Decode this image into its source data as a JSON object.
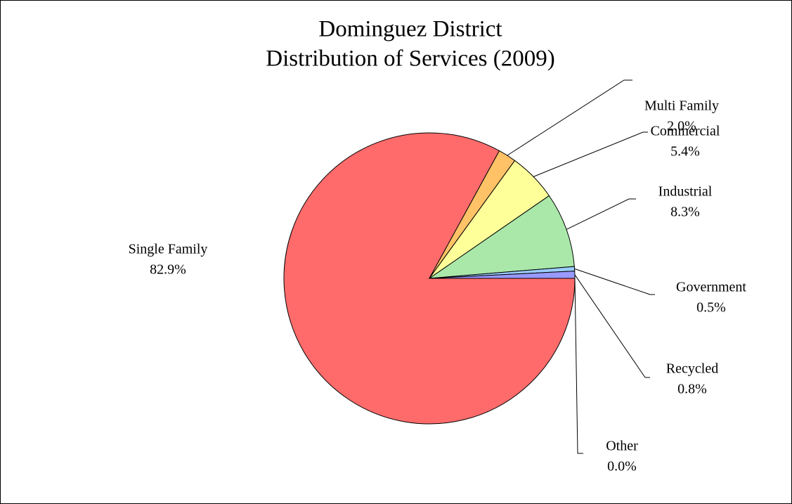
{
  "chart_data": {
    "type": "pie",
    "title": [
      "Dominguez District",
      "Distribution of Services (2009)"
    ],
    "categories": [
      "Single Family",
      "Multi Family",
      "Commercial",
      "Industrial",
      "Government",
      "Recycled",
      "Other"
    ],
    "values": [
      82.9,
      2.0,
      5.4,
      8.3,
      0.5,
      0.8,
      0.0
    ],
    "value_labels": [
      "82.9%",
      "2.0%",
      "5.4%",
      "8.3%",
      "0.5%",
      "0.8%",
      "0.0%"
    ],
    "colors": [
      "#ff6b6b",
      "#ffc266",
      "#ffff99",
      "#aae8aa",
      "#99ccff",
      "#9999ff",
      "#cccccc"
    ]
  }
}
